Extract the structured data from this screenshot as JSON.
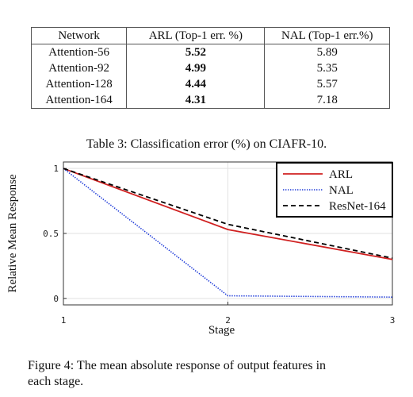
{
  "table": {
    "headers": [
      "Network",
      "ARL (Top-1 err. %)",
      "NAL (Top-1 err.%)"
    ],
    "rows": [
      [
        "Attention-56",
        "5.52",
        "5.89"
      ],
      [
        "Attention-92",
        "4.99",
        "5.35"
      ],
      [
        "Attention-128",
        "4.44",
        "5.57"
      ],
      [
        "Attention-164",
        "4.31",
        "7.18"
      ]
    ],
    "caption": "Table 3: Classification error (%) on CIAFR-10."
  },
  "figure": {
    "caption_line1": "Figure 4: The mean absolute response of output features in",
    "caption_line2": "each stage."
  },
  "chart_data": {
    "type": "line",
    "xlabel": "Stage",
    "ylabel": "Relative Mean Response",
    "x": [
      1,
      2,
      3
    ],
    "xlim": [
      1,
      3
    ],
    "ylim": [
      -0.05,
      1.05
    ],
    "xticks": [
      "1",
      "2",
      "3"
    ],
    "yticks": [
      {
        "v": 0,
        "label": "0"
      },
      {
        "v": 0.5,
        "label": "0.5"
      },
      {
        "v": 1,
        "label": "1"
      }
    ],
    "grid": true,
    "legend_position": "top-right",
    "series": [
      {
        "name": "ARL",
        "values": [
          1.0,
          0.53,
          0.3
        ],
        "color": "#d02020",
        "style": "solid"
      },
      {
        "name": "NAL",
        "values": [
          1.0,
          0.02,
          0.01
        ],
        "color": "#1e3ad8",
        "style": "dotted"
      },
      {
        "name": "ResNet-164",
        "values": [
          1.0,
          0.57,
          0.31
        ],
        "color": "#000000",
        "style": "dashed"
      }
    ]
  }
}
